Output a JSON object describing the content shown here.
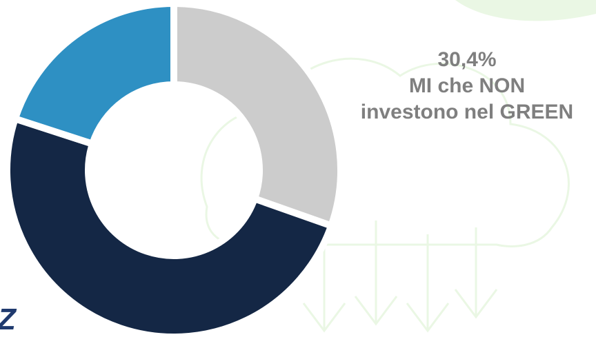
{
  "chart_data": {
    "type": "pie",
    "donut": true,
    "slices": [
      {
        "value": 30.4,
        "color": "#cccccc"
      },
      {
        "value": 49.6,
        "color": "#142745"
      },
      {
        "value": 20.0,
        "color": "#2e90c3"
      }
    ],
    "annotation": {
      "value_label": "30,4%",
      "line1": "MI che NON",
      "line2": "investono nel GREEN"
    }
  },
  "colors": {
    "background_art": "#eaf7e4",
    "annotation_text": "#7f7f7f",
    "corner_glyph": "#1f3a6e"
  },
  "corner_glyph": "Z"
}
